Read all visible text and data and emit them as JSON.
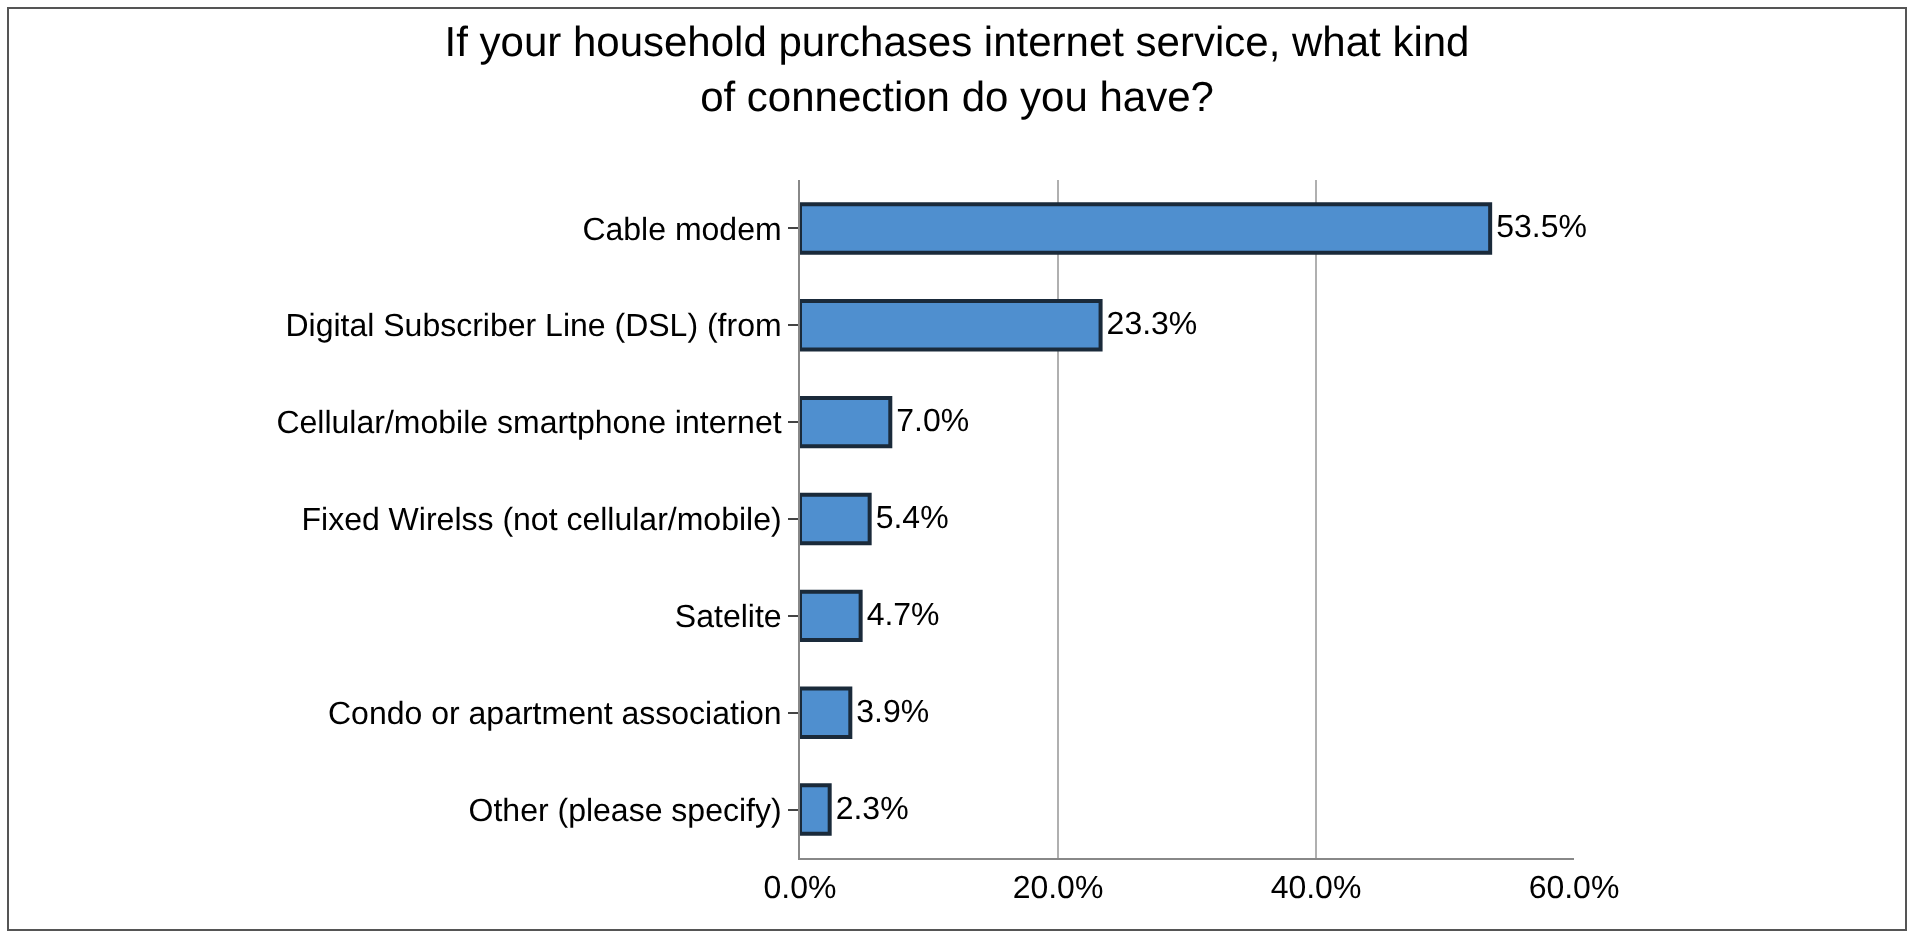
{
  "chart_data": {
    "type": "bar",
    "orientation": "horizontal",
    "title": "If your household purchases internet service, what kind of connection do you have?",
    "categories": [
      "Cable modem",
      "Digital Subscriber Line (DSL) (from",
      "Cellular/mobile smartphone internet",
      "Fixed Wirelss (not cellular/mobile)",
      "Satelite",
      "Condo or apartment association",
      "Other (please specify)"
    ],
    "values": [
      53.5,
      23.3,
      7.0,
      5.4,
      4.7,
      3.9,
      2.3
    ],
    "value_labels": [
      "53.5%",
      "23.3%",
      "7.0%",
      "5.4%",
      "4.7%",
      "3.9%",
      "2.3%"
    ],
    "color": "#4f8fcf",
    "xlim": [
      0,
      60
    ],
    "xticks": [
      {
        "value": 0,
        "label": "0.0%"
      },
      {
        "value": 20,
        "label": "20.0%"
      },
      {
        "value": 40,
        "label": "40.0%"
      },
      {
        "value": 60,
        "label": "60.0%"
      }
    ],
    "grid": "x"
  }
}
